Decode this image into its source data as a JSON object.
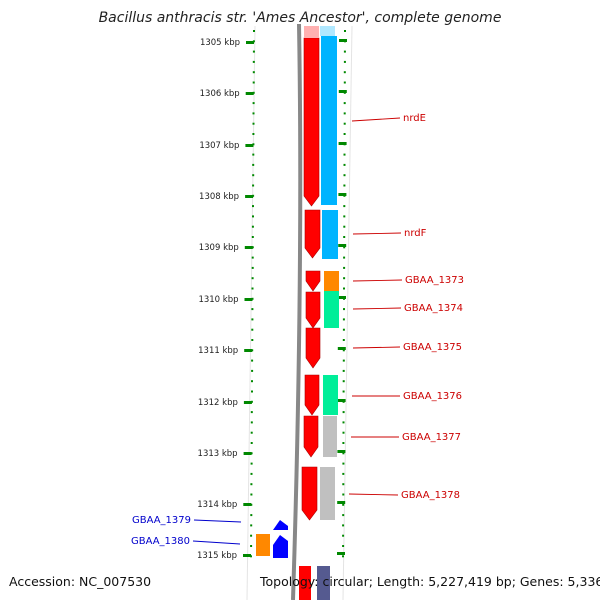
{
  "title": "Bacillus anthracis str. 'Ames Ancestor', complete genome",
  "footer": {
    "accession": "Accession: NC_007530",
    "topology": "Topology: circular; Length: 5,227,419 bp; Genes: 5,336"
  },
  "axis_labels": [
    "1305 kbp",
    "1306 kbp",
    "1307 kbp",
    "1308 kbp",
    "1309 kbp",
    "1310 kbp",
    "1311 kbp",
    "1312 kbp",
    "1313 kbp",
    "1314 kbp",
    "1315 kbp"
  ],
  "gene_labels": [
    {
      "text": "nrdE",
      "color": "#cc0000",
      "side": "right"
    },
    {
      "text": "nrdF",
      "color": "#cc0000",
      "side": "right"
    },
    {
      "text": "GBAA_1373",
      "color": "#cc0000",
      "side": "right"
    },
    {
      "text": "GBAA_1374",
      "color": "#cc0000",
      "side": "right"
    },
    {
      "text": "GBAA_1375",
      "color": "#cc0000",
      "side": "right"
    },
    {
      "text": "GBAA_1376",
      "color": "#cc0000",
      "side": "right"
    },
    {
      "text": "GBAA_1377",
      "color": "#cc0000",
      "side": "right"
    },
    {
      "text": "GBAA_1378",
      "color": "#cc0000",
      "side": "right"
    },
    {
      "text": "GBAA_1379",
      "color": "#0000cc",
      "side": "left"
    },
    {
      "text": "GBAA_1380",
      "color": "#0000cc",
      "side": "left"
    }
  ],
  "colors": {
    "forward_gene": "#ff0000",
    "reverse_gene": "#0000ff",
    "backbone": "#888888",
    "ticks": "#008800",
    "cog_blue": "#00b4ff",
    "cog_orange": "#ff8800",
    "cog_green": "#00ee99",
    "cog_gray": "#c0c0c0",
    "label_red": "#cc0000",
    "label_blue": "#0000cc"
  }
}
